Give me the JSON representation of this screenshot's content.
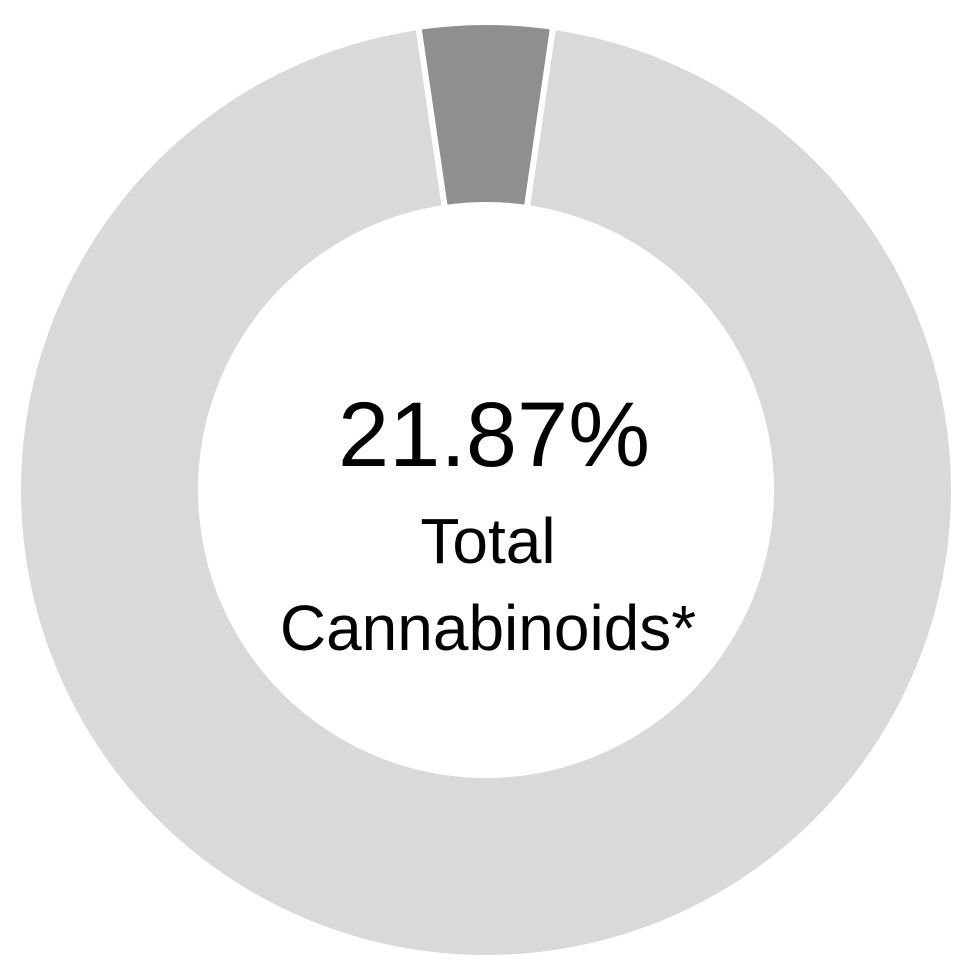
{
  "chart_data": {
    "type": "pie",
    "style": "donut",
    "slices": [
      {
        "value": 4.6,
        "color": "#8f8f8f"
      },
      {
        "value": 95.4,
        "color": "#d9d9d9"
      }
    ],
    "center": {
      "value": "21.87%",
      "label_lines": [
        "Total",
        "Cannabinoids*"
      ]
    },
    "slice_separator_color": "#ffffff",
    "legend": "none"
  }
}
